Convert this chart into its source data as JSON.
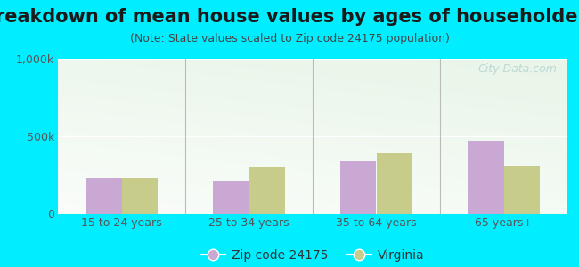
{
  "title": "Breakdown of mean house values by ages of householders",
  "subtitle": "(Note: State values scaled to Zip code 24175 population)",
  "categories": [
    "15 to 24 years",
    "25 to 34 years",
    "35 to 64 years",
    "65 years+"
  ],
  "zip_values": [
    230000,
    210000,
    340000,
    470000
  ],
  "va_values": [
    230000,
    300000,
    390000,
    310000
  ],
  "zip_color": "#c9a8d4",
  "va_color": "#c8cc8a",
  "ylim": [
    0,
    1000000
  ],
  "yticks": [
    0,
    500000,
    1000000
  ],
  "ytick_labels": [
    "0",
    "500k",
    "1,000k"
  ],
  "zip_label": "Zip code 24175",
  "va_label": "Virginia",
  "bg_color": "#00eeff",
  "watermark": "City-Data.com",
  "bar_width": 0.28,
  "title_fontsize": 15,
  "subtitle_fontsize": 9,
  "axis_fontsize": 9,
  "legend_fontsize": 10,
  "tick_color": "#555555",
  "grid_color": "#dddddd",
  "separator_color": "#bbbbbb"
}
